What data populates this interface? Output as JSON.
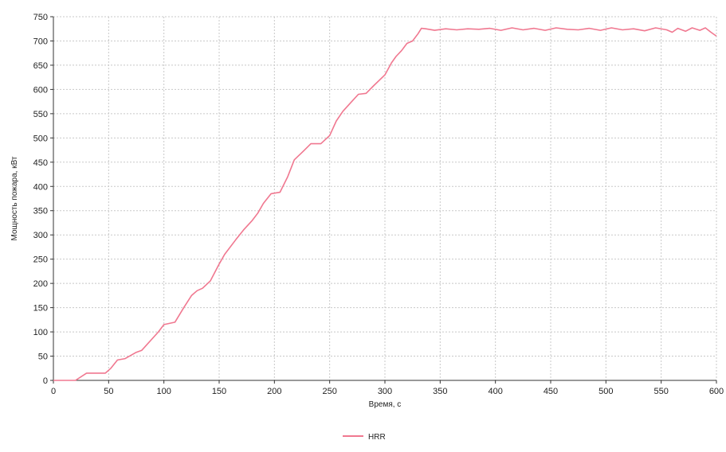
{
  "chart_data": {
    "type": "line",
    "title": "",
    "xlabel": "Время, с",
    "ylabel": "Мощность пожара, кВт",
    "xlim": [
      0,
      600
    ],
    "ylim": [
      0,
      750
    ],
    "x_ticks": [
      0,
      50,
      100,
      150,
      200,
      250,
      300,
      350,
      400,
      450,
      500,
      550,
      600
    ],
    "y_ticks": [
      0,
      50,
      100,
      150,
      200,
      250,
      300,
      350,
      400,
      450,
      500,
      550,
      600,
      650,
      700,
      750
    ],
    "grid": true,
    "legend_position": "bottom-center",
    "colors": {
      "line": "#f07890",
      "grid": "#c8c8c8",
      "axis": "#333333"
    },
    "series": [
      {
        "name": "HRR",
        "points": [
          [
            0,
            0
          ],
          [
            20,
            0
          ],
          [
            30,
            15
          ],
          [
            47,
            15
          ],
          [
            52,
            25
          ],
          [
            58,
            42
          ],
          [
            65,
            45
          ],
          [
            75,
            58
          ],
          [
            80,
            62
          ],
          [
            95,
            100
          ],
          [
            100,
            115
          ],
          [
            110,
            120
          ],
          [
            118,
            150
          ],
          [
            125,
            175
          ],
          [
            130,
            185
          ],
          [
            135,
            190
          ],
          [
            142,
            205
          ],
          [
            150,
            240
          ],
          [
            155,
            260
          ],
          [
            165,
            290
          ],
          [
            172,
            310
          ],
          [
            180,
            330
          ],
          [
            185,
            345
          ],
          [
            190,
            365
          ],
          [
            197,
            385
          ],
          [
            205,
            388
          ],
          [
            212,
            420
          ],
          [
            218,
            455
          ],
          [
            225,
            470
          ],
          [
            233,
            488
          ],
          [
            242,
            488
          ],
          [
            250,
            505
          ],
          [
            256,
            535
          ],
          [
            262,
            555
          ],
          [
            270,
            575
          ],
          [
            276,
            590
          ],
          [
            283,
            592
          ],
          [
            290,
            608
          ],
          [
            300,
            630
          ],
          [
            306,
            655
          ],
          [
            310,
            668
          ],
          [
            315,
            680
          ],
          [
            320,
            695
          ],
          [
            325,
            700
          ],
          [
            330,
            715
          ],
          [
            333,
            726
          ],
          [
            337,
            725
          ],
          [
            345,
            722
          ],
          [
            355,
            725
          ],
          [
            365,
            723
          ],
          [
            375,
            725
          ],
          [
            385,
            724
          ],
          [
            395,
            726
          ],
          [
            405,
            722
          ],
          [
            415,
            727
          ],
          [
            425,
            723
          ],
          [
            435,
            726
          ],
          [
            445,
            722
          ],
          [
            455,
            727
          ],
          [
            465,
            724
          ],
          [
            475,
            723
          ],
          [
            485,
            726
          ],
          [
            495,
            722
          ],
          [
            505,
            727
          ],
          [
            515,
            723
          ],
          [
            525,
            725
          ],
          [
            535,
            721
          ],
          [
            545,
            727
          ],
          [
            555,
            723
          ],
          [
            560,
            718
          ],
          [
            565,
            726
          ],
          [
            572,
            720
          ],
          [
            578,
            727
          ],
          [
            585,
            722
          ],
          [
            590,
            727
          ],
          [
            595,
            718
          ],
          [
            600,
            710
          ]
        ]
      }
    ]
  }
}
